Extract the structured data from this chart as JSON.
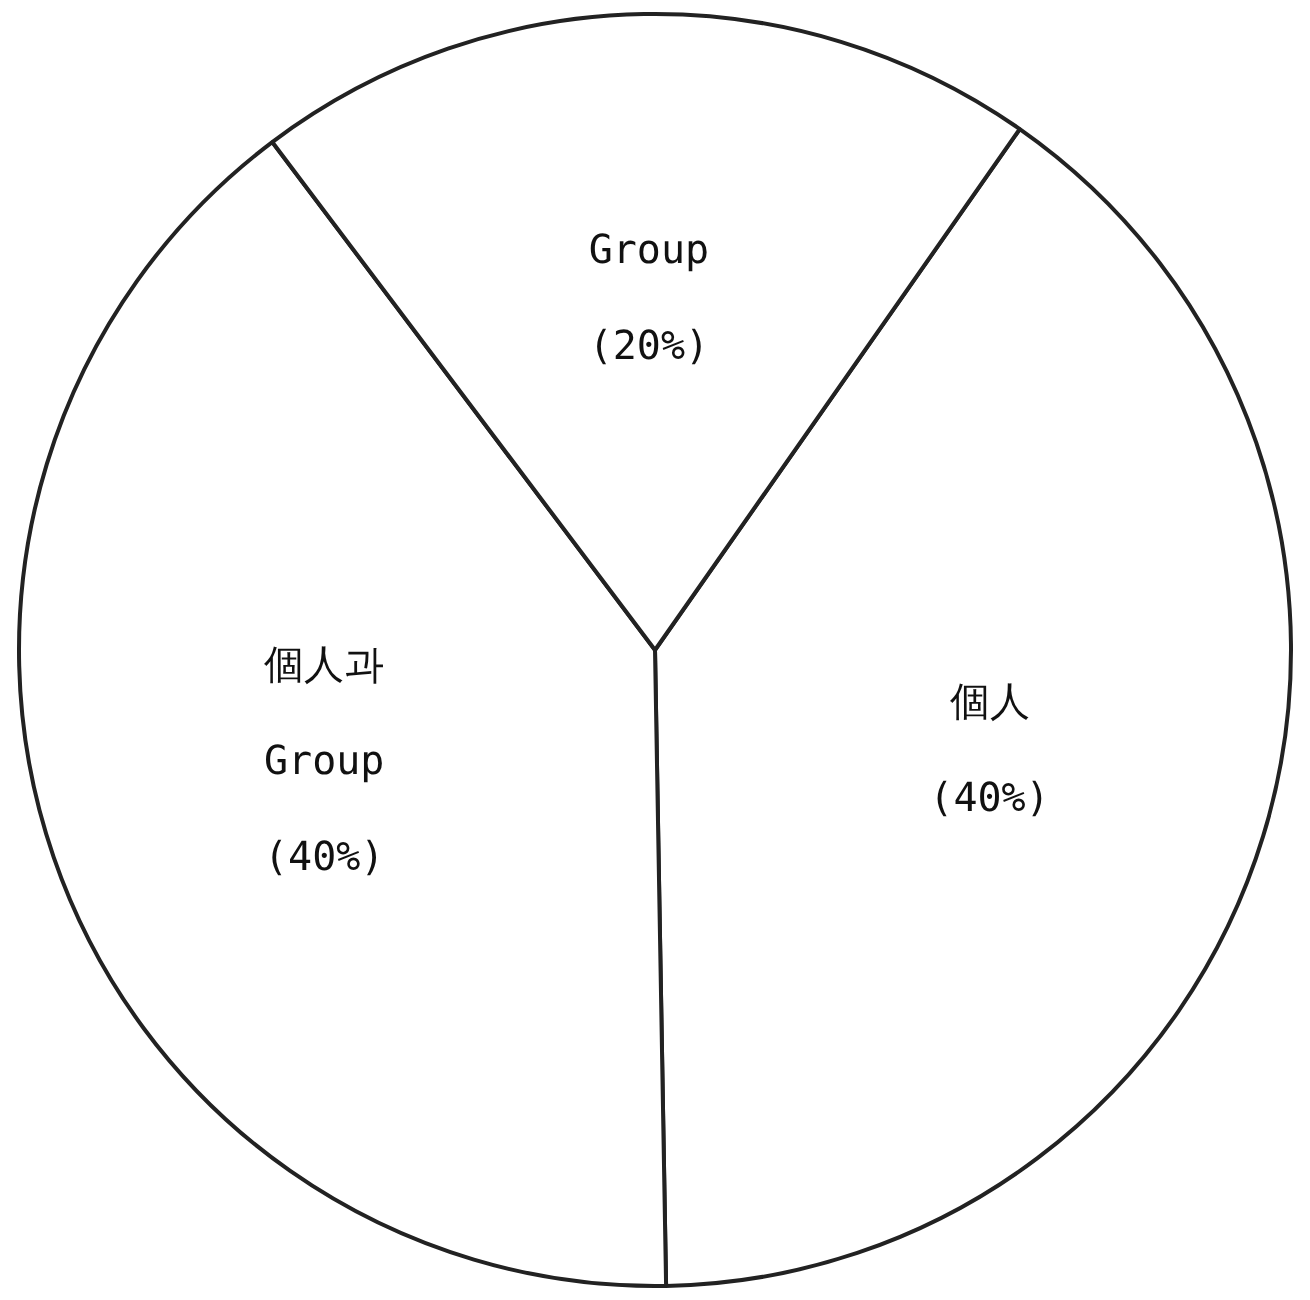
{
  "chart_data": {
    "type": "pie",
    "categories": [
      "個人",
      "個人과 Group",
      "Group"
    ],
    "values": [
      40,
      40,
      20
    ],
    "value_labels": [
      "(40%)",
      "(40%)",
      "(20%)"
    ],
    "colors": [
      "#ffffff",
      "#ffffff",
      "#ffffff"
    ],
    "legend": false
  }
}
